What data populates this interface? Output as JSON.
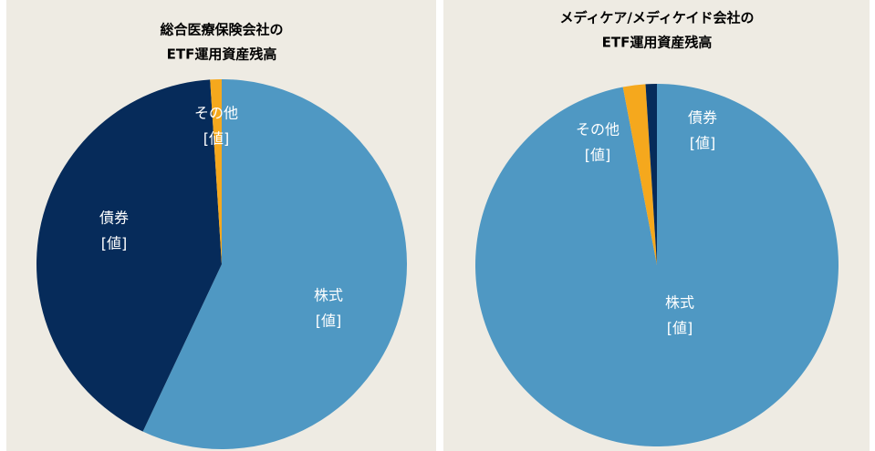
{
  "chart_data": [
    {
      "type": "pie",
      "title": [
        "総合医療保険会社の",
        "ETF運用資産残高"
      ],
      "categories": [
        "株式",
        "債券",
        "その他"
      ],
      "values": [
        57,
        42,
        1
      ],
      "value_labels": [
        "[値]",
        "[値]",
        "[値]"
      ],
      "colors": [
        "#4f98c3",
        "#062b5a",
        "#f5a81d"
      ]
    },
    {
      "type": "pie",
      "title": [
        "メディケア/メディケイド会社の",
        "ETF運用資産残高"
      ],
      "categories": [
        "株式",
        "その他",
        "債券"
      ],
      "values": [
        97,
        2,
        1
      ],
      "value_labels": [
        "[値]",
        "[値]",
        "[値]"
      ],
      "colors": [
        "#4f98c3",
        "#f5a81d",
        "#062b5a"
      ]
    }
  ]
}
